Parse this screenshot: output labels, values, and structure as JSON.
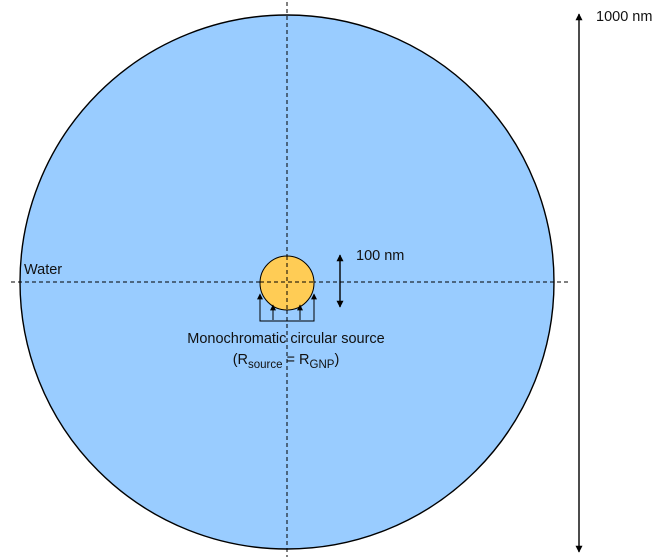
{
  "colors": {
    "water_fill": "#99ccff",
    "particle_fill": "#ffcc55",
    "stroke": "#000000"
  },
  "labels": {
    "water": "Water",
    "outer_scale": "1000 nm",
    "particle_scale": "100 nm",
    "source_title": "Monochromatic circular source",
    "equation": {
      "open": "(R",
      "source_sub": "source",
      "equals": " = R",
      "gnp_sub": "GNP",
      "close": ")"
    }
  },
  "icons": [
    "double-headed-arrow-icon",
    "upward-arrow-icon"
  ]
}
